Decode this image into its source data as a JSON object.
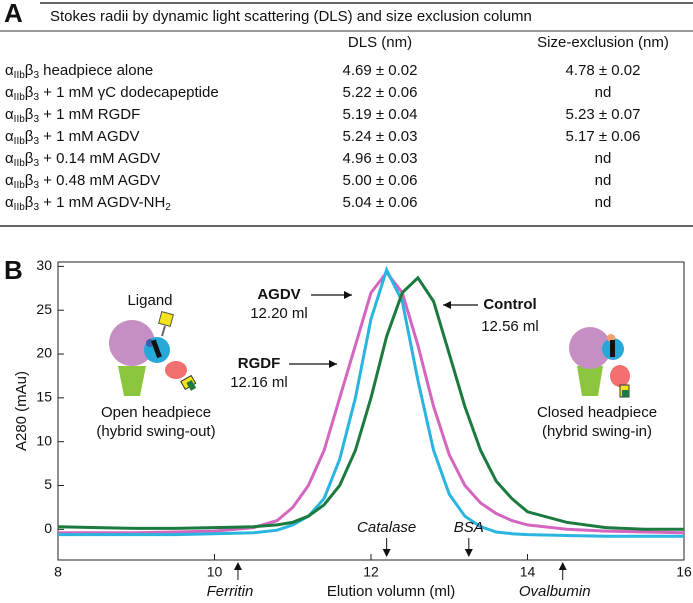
{
  "table": {
    "panel_label": "A",
    "title": "Stokes radii by dynamic light scattering (DLS) and size exclusion column",
    "columns": [
      "DLS (nm)",
      "Size-exclusion (nm)"
    ],
    "rows": [
      {
        "label": [
          "α",
          "IIb",
          "β",
          "3",
          " headpiece alone"
        ],
        "cells": [
          "4.69 ± 0.02",
          "4.78 ± 0.02"
        ]
      },
      {
        "label": [
          "α",
          "IIb",
          "β",
          "3",
          " + 1 mM γC dodecapeptide"
        ],
        "cells": [
          "5.22 ± 0.06",
          "nd"
        ]
      },
      {
        "label": [
          "α",
          "IIb",
          "β",
          "3",
          " + 1 mM RGDF"
        ],
        "cells": [
          "5.19 ± 0.04",
          "5.23 ± 0.07"
        ]
      },
      {
        "label": [
          "α",
          "IIb",
          "β",
          "3",
          " + 1 mM AGDV"
        ],
        "cells": [
          "5.24 ± 0.03",
          "5.17 ± 0.06"
        ]
      },
      {
        "label": [
          "α",
          "IIb",
          "β",
          "3",
          " + 0.14 mM AGDV"
        ],
        "cells": [
          "4.96 ± 0.03",
          "nd"
        ]
      },
      {
        "label": [
          "α",
          "IIb",
          "β",
          "3",
          " + 0.48 mM AGDV"
        ],
        "cells": [
          "5.00 ± 0.06",
          "nd"
        ]
      },
      {
        "label": [
          "α",
          "IIb",
          "β",
          "3",
          " + 1 mM AGDV-NH",
          "2"
        ],
        "cells": [
          "5.04 ± 0.06",
          "nd"
        ]
      }
    ]
  },
  "chart_data": {
    "type": "line",
    "panel_label": "B",
    "x_label": "Elution volumn (ml)",
    "y_label": "A280 (mAu)",
    "x": [
      8,
      8.5,
      9,
      9.5,
      10,
      10.5,
      10.8,
      11,
      11.2,
      11.4,
      11.6,
      11.8,
      12,
      12.2,
      12.4,
      12.6,
      12.8,
      13,
      13.2,
      13.4,
      13.6,
      13.8,
      14,
      14.5,
      15,
      15.5,
      16
    ],
    "series": [
      {
        "name": "Control",
        "peak_label": "12.56 ml",
        "color": "#1b7a3e",
        "values": [
          0.3,
          0.2,
          0.1,
          0.1,
          0.2,
          0.3,
          0.5,
          0.8,
          1.5,
          2.8,
          5,
          9,
          15,
          22,
          27,
          28.7,
          26,
          20,
          14,
          9,
          5.5,
          3.5,
          2,
          0.8,
          0.2,
          0,
          0
        ]
      },
      {
        "name": "AGDV",
        "peak_label": "12.20 ml",
        "color": "#29b5e0",
        "values": [
          -0.6,
          -0.6,
          -0.6,
          -0.6,
          -0.5,
          -0.4,
          -0.1,
          0.5,
          1.5,
          3.5,
          8,
          15,
          24,
          29.6,
          26,
          17,
          9,
          4,
          1.5,
          0.3,
          -0.3,
          -0.5,
          -0.6,
          -0.7,
          -0.8,
          -0.8,
          -0.8
        ]
      },
      {
        "name": "RGDF",
        "peak_label": "12.16 ml",
        "color": "#d466c0",
        "values": [
          -0.4,
          -0.4,
          -0.4,
          -0.3,
          -0.2,
          0.2,
          1,
          2.5,
          5,
          9,
          15,
          21,
          27,
          29.3,
          27,
          21,
          14,
          8.5,
          5,
          3,
          1.8,
          1,
          0.5,
          0,
          -0.2,
          -0.3,
          -0.4
        ]
      }
    ],
    "xlim": [
      8,
      16
    ],
    "xticks": [
      8,
      10,
      12,
      14,
      16
    ],
    "ylim": [
      -3.5,
      30.5
    ],
    "yticks": [
      0,
      5,
      10,
      15,
      20,
      25,
      30
    ],
    "markers": [
      {
        "label": "Ferritin",
        "x": 10.3,
        "side": "below"
      },
      {
        "label": "Catalase",
        "x": 12.2,
        "side": "above"
      },
      {
        "label": "BSA",
        "x": 13.25,
        "side": "above"
      },
      {
        "label": "Ovalbumin",
        "x": 14.45,
        "side": "below"
      }
    ],
    "cartoons": [
      {
        "lines": [
          "Open headpiece",
          "(hybrid swing-out)"
        ],
        "ligand": "Ligand"
      },
      {
        "lines": [
          "Closed headpiece",
          "(hybrid swing-in)"
        ]
      }
    ]
  }
}
